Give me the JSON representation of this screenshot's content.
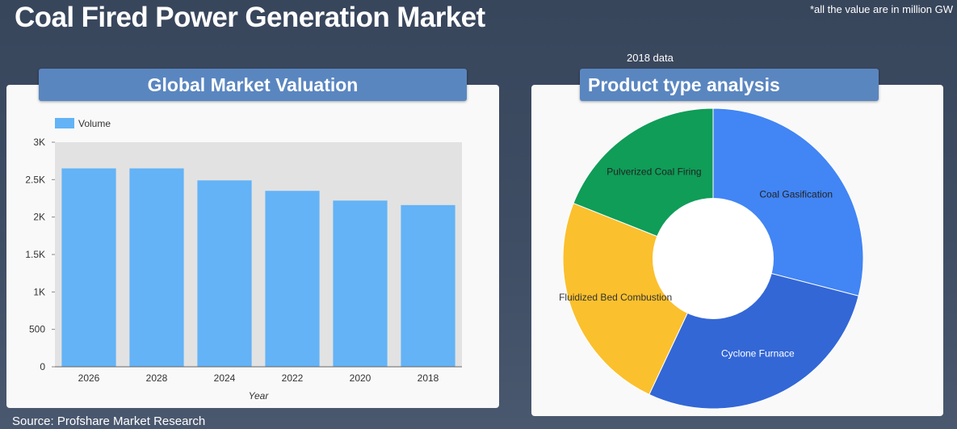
{
  "header": {
    "title": "Coal Fired Power Generation Market",
    "unit_note": "*all the value are in  million GW",
    "data_year": "2018 data"
  },
  "left_panel": {
    "title": "Global Market Valuation"
  },
  "right_panel": {
    "title": "Product type analysis"
  },
  "footer": {
    "source": "Source: Profshare Market Research"
  },
  "colors": {
    "bar": "#63b3f6",
    "plot_bg": "#e2e2e2",
    "banner": "#5a86c0",
    "coal_gasification": "#4285f4",
    "cyclone_furnace": "#3367d6",
    "fluidized_bed": "#fbc02d",
    "pulverized_coal": "#0f9d58"
  },
  "chart_data": [
    {
      "type": "bar",
      "title": "",
      "xlabel": "Year",
      "ylabel": "",
      "categories": [
        "2026",
        "2028",
        "2024",
        "2022",
        "2020",
        "2018"
      ],
      "series": [
        {
          "name": "Volume",
          "values": [
            2650,
            2650,
            2490,
            2350,
            2220,
            2160
          ]
        }
      ],
      "ylim": [
        0,
        3000
      ],
      "yticks": [
        0,
        500,
        1000,
        1500,
        2000,
        2500,
        3000
      ],
      "ytick_labels": [
        "0",
        "500",
        "1K",
        "1.5K",
        "2K",
        "2.5K",
        "3K"
      ],
      "grid": false,
      "legend": "top-left"
    },
    {
      "type": "pie",
      "title": "",
      "hole": true,
      "labels": [
        "Coal Gasification",
        "Cyclone Furnace",
        "Fluidized Bed Combustion",
        "Pulverized Coal Firing"
      ],
      "values": [
        29,
        28,
        24,
        19
      ]
    }
  ]
}
